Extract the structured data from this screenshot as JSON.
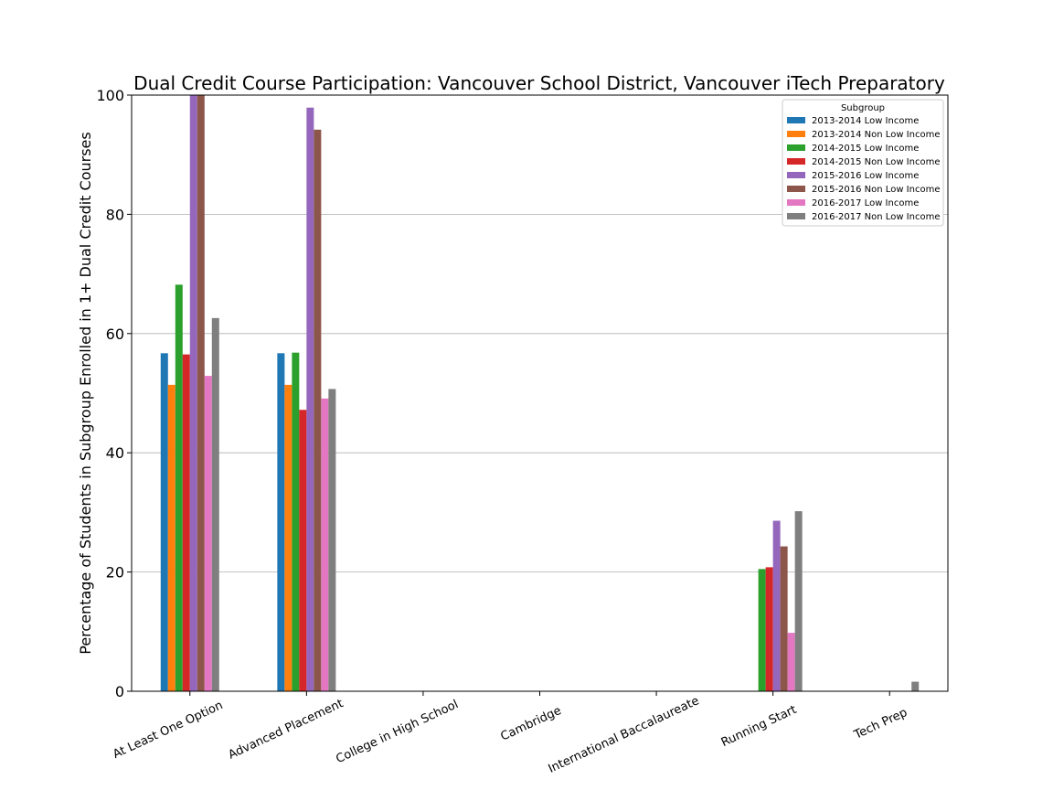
{
  "chart_data": {
    "type": "bar",
    "title": "Dual Credit Course Participation: Vancouver School District, Vancouver iTech Preparatory",
    "xlabel": "",
    "ylabel": "Percentage of Students in Subgroup Enrolled in 1+ Dual Credit Courses",
    "ylim": [
      0,
      100
    ],
    "yticks": [
      0,
      20,
      40,
      60,
      80,
      100
    ],
    "grid": "horizontal",
    "legend_title": "Subgroup",
    "legend_position": "top-right",
    "categories": [
      "At Least One Option",
      "Advanced Placement",
      "College in High School",
      "Cambridge",
      "International Baccalaureate",
      "Running Start",
      "Tech Prep"
    ],
    "series": [
      {
        "name": "2013-2014 Low Income",
        "color": "#1f77b4",
        "values": [
          56.7,
          56.7,
          0,
          0,
          0,
          0,
          0
        ]
      },
      {
        "name": "2013-2014 Non Low Income",
        "color": "#ff7f0e",
        "values": [
          51.4,
          51.4,
          0,
          0,
          0,
          0,
          0
        ]
      },
      {
        "name": "2014-2015 Low Income",
        "color": "#2ca02c",
        "values": [
          68.2,
          56.8,
          0,
          0,
          0,
          20.5,
          0
        ]
      },
      {
        "name": "2014-2015 Non Low Income",
        "color": "#d62728",
        "values": [
          56.5,
          47.2,
          0,
          0,
          0,
          20.8,
          0
        ]
      },
      {
        "name": "2015-2016 Low Income",
        "color": "#9467bd",
        "values": [
          100,
          97.9,
          0,
          0,
          0,
          28.6,
          0
        ]
      },
      {
        "name": "2015-2016 Non Low Income",
        "color": "#8c564b",
        "values": [
          100,
          94.2,
          0,
          0,
          0,
          24.3,
          0
        ]
      },
      {
        "name": "2016-2017 Low Income",
        "color": "#e377c2",
        "values": [
          52.9,
          49.1,
          0,
          0,
          0,
          9.8,
          0
        ]
      },
      {
        "name": "2016-2017 Non Low Income",
        "color": "#7f7f7f",
        "values": [
          62.6,
          50.7,
          0,
          0,
          0,
          30.2,
          1.6
        ]
      }
    ]
  }
}
